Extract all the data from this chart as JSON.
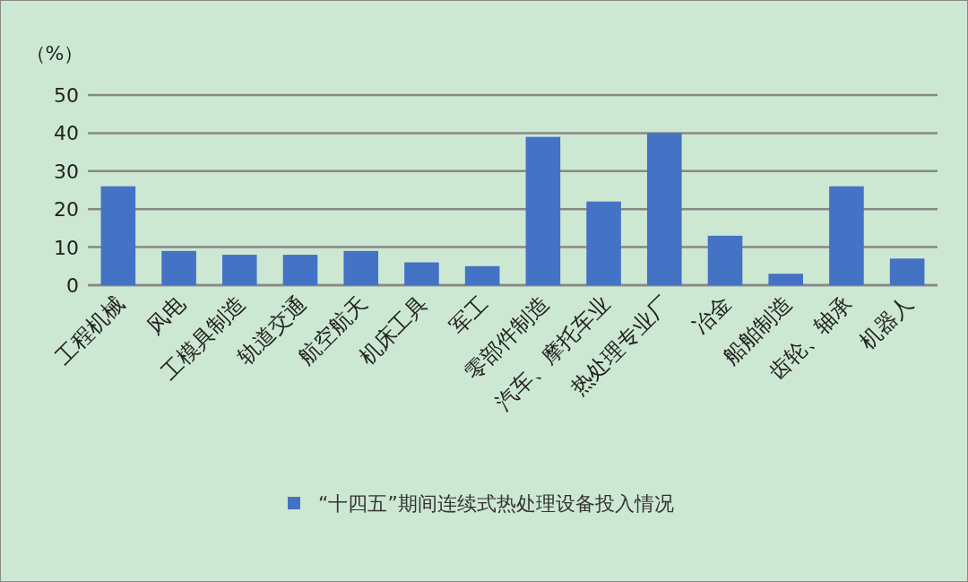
{
  "chart_data": {
    "type": "bar",
    "ylabel": "（%）",
    "categories": [
      "工程机械",
      "风电",
      "工模具制造",
      "轨道交通",
      "航空航天",
      "机床工具",
      "军工",
      "零部件制造",
      "汽车、摩托车业",
      "热处理专业厂",
      "冶金",
      "船舶制造",
      "齿轮、轴承",
      "机器人"
    ],
    "series": [
      {
        "name": "“十四五”期间连续式热处理设备投入情况",
        "color": "#4472c4",
        "values": [
          26,
          9,
          8,
          8,
          9,
          6,
          5,
          39,
          22,
          40,
          13,
          3,
          26,
          7
        ]
      }
    ],
    "ylim": [
      0,
      50
    ],
    "yticks": [
      0,
      10,
      20,
      30,
      40,
      50
    ],
    "grid": "y",
    "legend": "bottom"
  }
}
